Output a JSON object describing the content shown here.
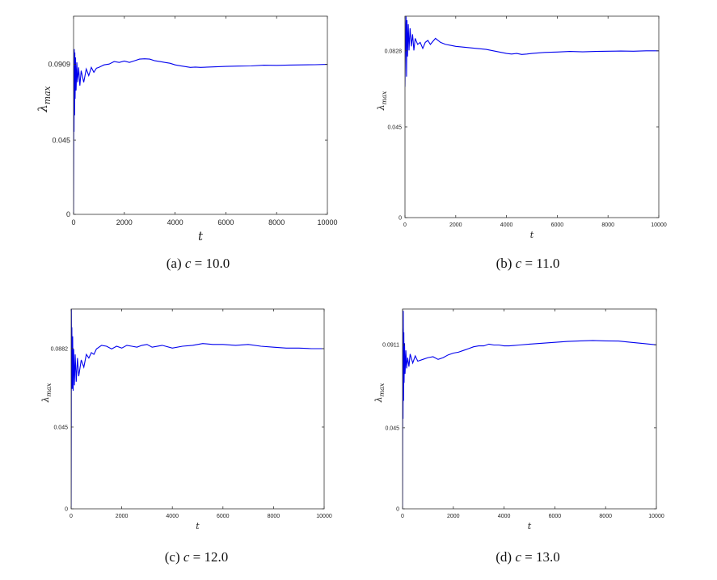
{
  "chart_data": [
    {
      "type": "line",
      "caption": {
        "label": "(a)",
        "var": "c",
        "eq": " = 10.0"
      },
      "xlabel": "t",
      "ylabel": "λ",
      "ylabel_sub": "max",
      "xlim": [
        0,
        10000
      ],
      "ylim": [
        0,
        0.12
      ],
      "xticks": [
        0,
        2000,
        4000,
        6000,
        8000,
        10000
      ],
      "yticks": [
        0,
        0.045,
        0.0909
      ],
      "ytick_labels": [
        "0",
        "0.045",
        "0.0909"
      ],
      "grid": false,
      "series": [
        {
          "color": "#0000ee",
          "x": [
            0,
            5,
            10,
            20,
            30,
            40,
            50,
            60,
            80,
            100,
            130,
            160,
            200,
            250,
            300,
            400,
            500,
            600,
            700,
            800,
            900,
            1000,
            1200,
            1400,
            1600,
            1800,
            2000,
            2200,
            2400,
            2600,
            2800,
            3000,
            3200,
            3400,
            3600,
            3800,
            4000,
            4200,
            4400,
            4600,
            4800,
            5000,
            5500,
            6000,
            6500,
            7000,
            7500,
            8000,
            8500,
            9000,
            9500,
            10000
          ],
          "y": [
            0,
            0.04,
            0.09,
            0.05,
            0.1,
            0.06,
            0.098,
            0.07,
            0.095,
            0.075,
            0.092,
            0.08,
            0.089,
            0.078,
            0.087,
            0.08,
            0.088,
            0.084,
            0.089,
            0.086,
            0.0885,
            0.089,
            0.0905,
            0.091,
            0.0925,
            0.092,
            0.0928,
            0.092,
            0.093,
            0.094,
            0.0942,
            0.094,
            0.093,
            0.0925,
            0.092,
            0.0915,
            0.0905,
            0.09,
            0.0895,
            0.089,
            0.0892,
            0.089,
            0.0893,
            0.0896,
            0.0898,
            0.0899,
            0.0903,
            0.0902,
            0.0904,
            0.0905,
            0.0906,
            0.0908
          ]
        }
      ]
    },
    {
      "type": "line",
      "caption": {
        "label": "(b)",
        "var": "c",
        "eq": " = 11.0"
      },
      "xlabel": "t",
      "ylabel": "λ",
      "ylabel_sub": "max",
      "xlim": [
        0,
        10000
      ],
      "ylim": [
        0,
        0.1
      ],
      "xticks": [
        0,
        2000,
        4000,
        6000,
        8000,
        10000
      ],
      "yticks": [
        0,
        0.045,
        0.0828
      ],
      "ytick_labels": [
        "0",
        "0.045",
        "0.0828"
      ],
      "grid": false,
      "series": [
        {
          "color": "#0000ee",
          "x": [
            0,
            20,
            40,
            60,
            80,
            100,
            130,
            160,
            200,
            250,
            300,
            350,
            400,
            500,
            600,
            700,
            800,
            900,
            1000,
            1200,
            1400,
            1600,
            1800,
            2000,
            2400,
            2800,
            3200,
            3600,
            3800,
            4000,
            4200,
            4400,
            4600,
            4800,
            5000,
            5500,
            6000,
            6500,
            7000,
            7500,
            8000,
            8500,
            9000,
            9500,
            10000
          ],
          "y": [
            0.065,
            0.09,
            0.1,
            0.07,
            0.098,
            0.08,
            0.096,
            0.083,
            0.094,
            0.085,
            0.091,
            0.083,
            0.089,
            0.086,
            0.087,
            0.084,
            0.087,
            0.088,
            0.086,
            0.089,
            0.087,
            0.086,
            0.0855,
            0.085,
            0.0845,
            0.084,
            0.0835,
            0.0825,
            0.082,
            0.0815,
            0.0812,
            0.0815,
            0.081,
            0.0812,
            0.0815,
            0.082,
            0.0822,
            0.0825,
            0.0823,
            0.0825,
            0.0826,
            0.0827,
            0.0826,
            0.0828,
            0.0828
          ]
        }
      ]
    },
    {
      "type": "line",
      "caption": {
        "label": "(c)",
        "var": "c",
        "eq": " = 12.0"
      },
      "xlabel": "t",
      "ylabel": "λ",
      "ylabel_sub": "max",
      "xlim": [
        0,
        10000
      ],
      "ylim": [
        0,
        0.11
      ],
      "xticks": [
        0,
        2000,
        4000,
        6000,
        8000,
        10000
      ],
      "yticks": [
        0,
        0.045,
        0.0882
      ],
      "ytick_labels": [
        "0",
        "0.045",
        "0.0882"
      ],
      "grid": false,
      "series": [
        {
          "color": "#0000ee",
          "x": [
            0,
            5,
            10,
            20,
            30,
            40,
            60,
            80,
            100,
            130,
            160,
            200,
            250,
            300,
            400,
            500,
            600,
            700,
            800,
            900,
            1000,
            1200,
            1400,
            1600,
            1800,
            2000,
            2200,
            2400,
            2600,
            2800,
            3000,
            3200,
            3600,
            4000,
            4400,
            4800,
            5200,
            5600,
            6000,
            6500,
            7000,
            7500,
            8000,
            8500,
            9000,
            9500,
            10000
          ],
          "y": [
            0,
            0.05,
            0.11,
            0.07,
            0.1,
            0.066,
            0.095,
            0.065,
            0.088,
            0.068,
            0.085,
            0.07,
            0.083,
            0.073,
            0.082,
            0.078,
            0.085,
            0.083,
            0.086,
            0.085,
            0.088,
            0.09,
            0.0895,
            0.088,
            0.0895,
            0.0885,
            0.09,
            0.0895,
            0.089,
            0.09,
            0.0905,
            0.089,
            0.09,
            0.0885,
            0.0895,
            0.09,
            0.091,
            0.0905,
            0.0905,
            0.09,
            0.0905,
            0.0895,
            0.089,
            0.0885,
            0.0885,
            0.0882,
            0.0882
          ]
        }
      ]
    },
    {
      "type": "line",
      "caption": {
        "label": "(d)",
        "var": "c",
        "eq": " = 13.0"
      },
      "xlabel": "t",
      "ylabel": "λ",
      "ylabel_sub": "max",
      "xlim": [
        0,
        10000
      ],
      "ylim": [
        0,
        0.111
      ],
      "xticks": [
        0,
        2000,
        4000,
        6000,
        8000,
        10000
      ],
      "yticks": [
        0,
        0.045,
        0.0911
      ],
      "ytick_labels": [
        "0",
        "0.045",
        "0.0911"
      ],
      "grid": false,
      "series": [
        {
          "color": "#0000ee",
          "x": [
            0,
            5,
            10,
            20,
            30,
            40,
            50,
            60,
            80,
            100,
            130,
            160,
            200,
            250,
            300,
            400,
            500,
            600,
            800,
            1000,
            1200,
            1400,
            1600,
            1800,
            2000,
            2200,
            2400,
            2600,
            2800,
            3000,
            3200,
            3400,
            3600,
            3800,
            4000,
            4200,
            4600,
            5000,
            5500,
            6000,
            6500,
            7000,
            7500,
            8000,
            8500,
            9000,
            9500,
            10000
          ],
          "y": [
            0,
            0.06,
            0.1,
            0.05,
            0.11,
            0.06,
            0.098,
            0.07,
            0.092,
            0.075,
            0.088,
            0.078,
            0.084,
            0.079,
            0.086,
            0.081,
            0.085,
            0.082,
            0.083,
            0.084,
            0.0845,
            0.083,
            0.084,
            0.0855,
            0.0865,
            0.087,
            0.088,
            0.089,
            0.09,
            0.0905,
            0.0905,
            0.0915,
            0.091,
            0.091,
            0.0905,
            0.0905,
            0.091,
            0.0915,
            0.092,
            0.0925,
            0.093,
            0.0933,
            0.0935,
            0.0933,
            0.0932,
            0.0925,
            0.0918,
            0.0911
          ]
        }
      ]
    }
  ]
}
